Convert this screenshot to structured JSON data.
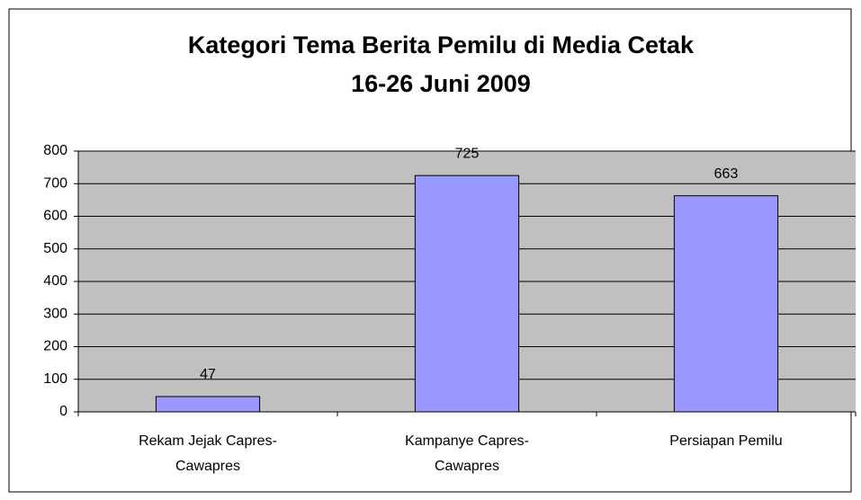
{
  "chart_data": {
    "type": "bar",
    "title": "Kategori Tema Berita Pemilu di Media Cetak",
    "subtitle": "16-26 Juni 2009",
    "categories": [
      "Rekam Jejak Capres-Cawapres",
      "Kampanye Capres-Cawapres",
      "Persiapan Pemilu"
    ],
    "values": [
      47,
      725,
      663
    ],
    "color": "#9999ff",
    "ylim": [
      0,
      800
    ],
    "yticks": [
      0,
      100,
      200,
      300,
      400,
      500,
      600,
      700,
      800
    ],
    "grid": true
  }
}
